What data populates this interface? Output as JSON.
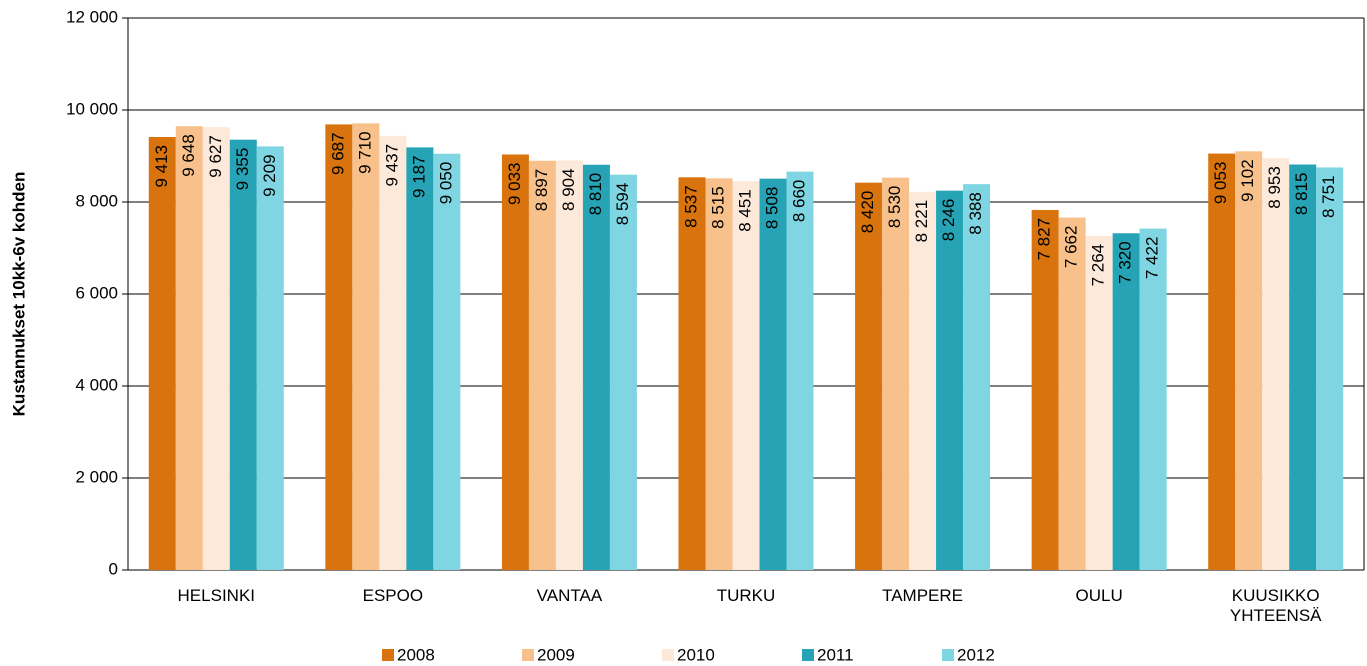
{
  "chart_data": {
    "type": "bar",
    "y_label": "Kustannukset 10kk-6v kohden",
    "categories": [
      "HELSINKI",
      "ESPOO",
      "VANTAA",
      "TURKU",
      "TAMPERE",
      "OULU",
      "KUUSIKKO YHTEENSÄ"
    ],
    "series": [
      {
        "name": "2008",
        "color": "#d9730d",
        "values": [
          9413,
          9687,
          9033,
          8537,
          8420,
          7827,
          9053
        ],
        "value_labels": [
          "9 413",
          "9 687",
          "9 033",
          "8 537",
          "8 420",
          "7 827",
          "9 053"
        ]
      },
      {
        "name": "2009",
        "color": "#f8c08a",
        "values": [
          9648,
          9710,
          8897,
          8515,
          8530,
          7662,
          9102
        ],
        "value_labels": [
          "9 648",
          "9 710",
          "8 897",
          "8 515",
          "8 530",
          "7 662",
          "9 102"
        ]
      },
      {
        "name": "2010",
        "color": "#fde9d9",
        "values": [
          9627,
          9437,
          8904,
          8451,
          8221,
          7264,
          8953
        ],
        "value_labels": [
          "9 627",
          "9 437",
          "8 904",
          "8 451",
          "8 221",
          "7 264",
          "8 953"
        ]
      },
      {
        "name": "2011",
        "color": "#26a3b4",
        "values": [
          9355,
          9187,
          8810,
          8508,
          8246,
          7320,
          8815
        ],
        "value_labels": [
          "9 355",
          "9 187",
          "8 810",
          "8 508",
          "8 246",
          "7 320",
          "8 815"
        ]
      },
      {
        "name": "2012",
        "color": "#7fd6e2",
        "values": [
          9209,
          9050,
          8594,
          8660,
          8388,
          7422,
          8751
        ],
        "value_labels": [
          "9 209",
          "9 050",
          "8 594",
          "8 660",
          "8 388",
          "7 422",
          "8 751"
        ]
      }
    ],
    "ylim": [
      0,
      12000
    ],
    "yticks": [
      0,
      {
        "value": 2000,
        "label": "2 000"
      },
      {
        "value": 4000,
        "label": "4 000"
      },
      {
        "value": 6000,
        "label": "6 000"
      },
      {
        "value": 8000,
        "label": "8 000"
      },
      {
        "value": 10000,
        "label": "10 000"
      },
      {
        "value": 12000,
        "label": "12 000"
      }
    ],
    "grid": true,
    "legend": "bottom"
  }
}
